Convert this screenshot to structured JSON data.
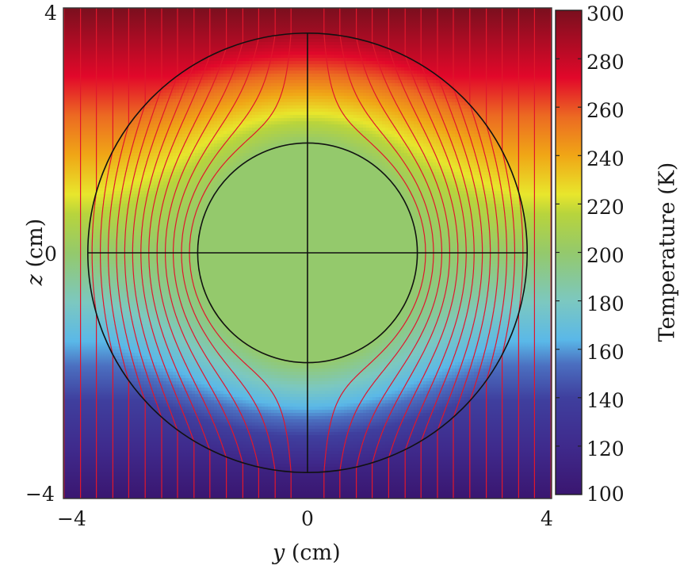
{
  "chart_data": {
    "type": "heatmap",
    "title": "",
    "xlabel": "y (cm)",
    "xlabel_var": "y",
    "xlabel_unit": "(cm)",
    "ylabel": "z (cm)",
    "ylabel_var": "z",
    "ylabel_unit": "(cm)",
    "xlim": [
      -4,
      4
    ],
    "ylim": [
      -4,
      4
    ],
    "xticks": [
      "−4",
      "0",
      "4"
    ],
    "yticks": [
      "4",
      "0",
      "−4"
    ],
    "colorbar": {
      "label": "Temperature (K)",
      "range": [
        100,
        300
      ],
      "ticks": [
        "300",
        "280",
        "260",
        "240",
        "220",
        "200",
        "180",
        "160",
        "140",
        "120",
        "100"
      ],
      "colormap": [
        {
          "t": 0.0,
          "color": "#3a1670"
        },
        {
          "t": 0.1,
          "color": "#3f2a8c"
        },
        {
          "t": 0.2,
          "color": "#3f3f9e"
        },
        {
          "t": 0.27,
          "color": "#4b6fc0"
        },
        {
          "t": 0.32,
          "color": "#5ab8e8"
        },
        {
          "t": 0.4,
          "color": "#7cc8c0"
        },
        {
          "t": 0.5,
          "color": "#94c96c"
        },
        {
          "t": 0.58,
          "color": "#b8d43c"
        },
        {
          "t": 0.62,
          "color": "#e8e62c"
        },
        {
          "t": 0.7,
          "color": "#f0a616"
        },
        {
          "t": 0.78,
          "color": "#ec6a22"
        },
        {
          "t": 0.86,
          "color": "#e2082a"
        },
        {
          "t": 1.0,
          "color": "#7a0f1e"
        }
      ]
    },
    "geometry": {
      "outer_radius_cm": 3.6,
      "inner_radius_cm": 1.8,
      "center": [
        0,
        0
      ],
      "inner_region_temperature_K": 200,
      "boundary_color": "#111111",
      "crosshair": true
    },
    "streamlines": {
      "color": "#e0172c",
      "count_per_side": 15,
      "spacing_cm": 0.266,
      "x_positions_cm": [
        -3.99,
        -3.72,
        -3.46,
        -3.19,
        -2.93,
        -2.66,
        -2.39,
        -2.13,
        -1.86,
        -1.6,
        -1.33,
        -1.06,
        -0.8,
        -0.53,
        -0.27,
        0.27,
        0.53,
        0.8,
        1.06,
        1.33,
        1.6,
        1.86,
        2.13,
        2.39,
        2.66,
        2.93,
        3.19,
        3.46,
        3.72,
        3.99
      ]
    },
    "field_description": "Linear temperature gradient along z from 100 K (z=-4) to 300 K (z=4); uniform 200 K inside inner circle (thermal cloak)"
  }
}
